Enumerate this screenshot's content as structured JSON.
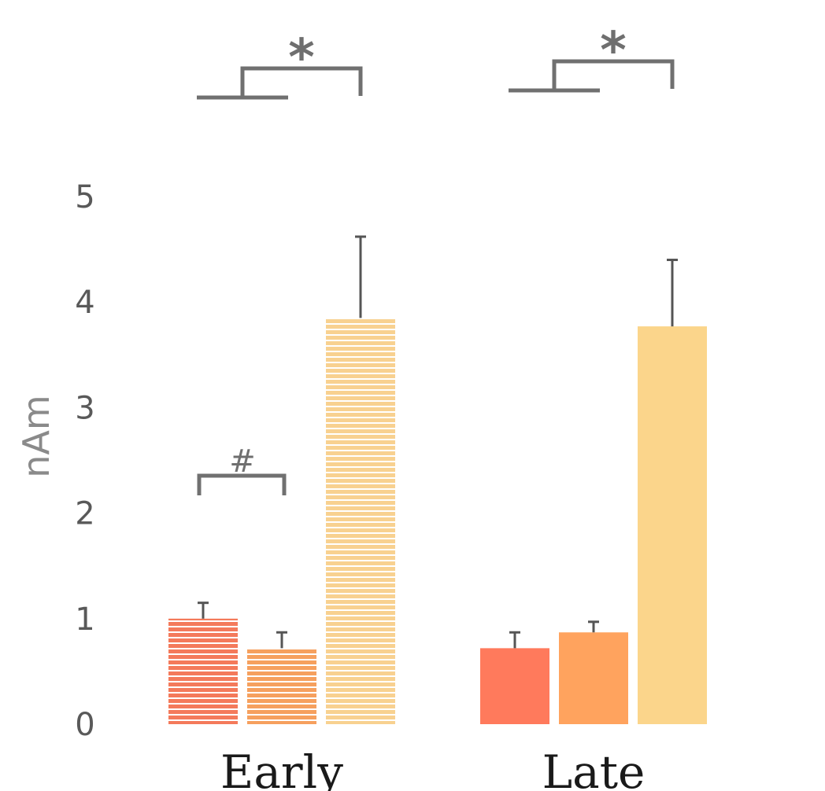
{
  "chart_data": {
    "type": "bar",
    "ylabel": "nAm",
    "ylim": [
      0,
      5
    ],
    "yticks": [
      "0",
      "1",
      "2",
      "3",
      "4",
      "5"
    ],
    "categories": [
      "Early",
      "Late"
    ],
    "series": [
      {
        "values": [
          1.0,
          0.72
        ],
        "errors": [
          0.15,
          0.15
        ],
        "colors": {
          "Early": "#f47a5b",
          "Late": "#ff7a5c"
        }
      },
      {
        "values": [
          0.72,
          0.87
        ],
        "errors": [
          0.15,
          0.1
        ],
        "colors": {
          "Early": "#f6a05e",
          "Late": "#ffa35e"
        }
      },
      {
        "values": [
          3.85,
          3.77
        ],
        "errors": [
          0.77,
          0.63
        ],
        "colors": {
          "Early": "#f8d190",
          "Late": "#fbd58b"
        }
      }
    ],
    "fill_pattern": {
      "Early": "striped",
      "Late": "solid"
    },
    "annotations": [
      {
        "text": "*",
        "group": "Early",
        "type": "pair-vs-third"
      },
      {
        "text": "*",
        "group": "Late",
        "type": "pair-vs-third"
      },
      {
        "text": "#",
        "group": "Early",
        "type": "bar1-vs-bar2"
      }
    ]
  }
}
